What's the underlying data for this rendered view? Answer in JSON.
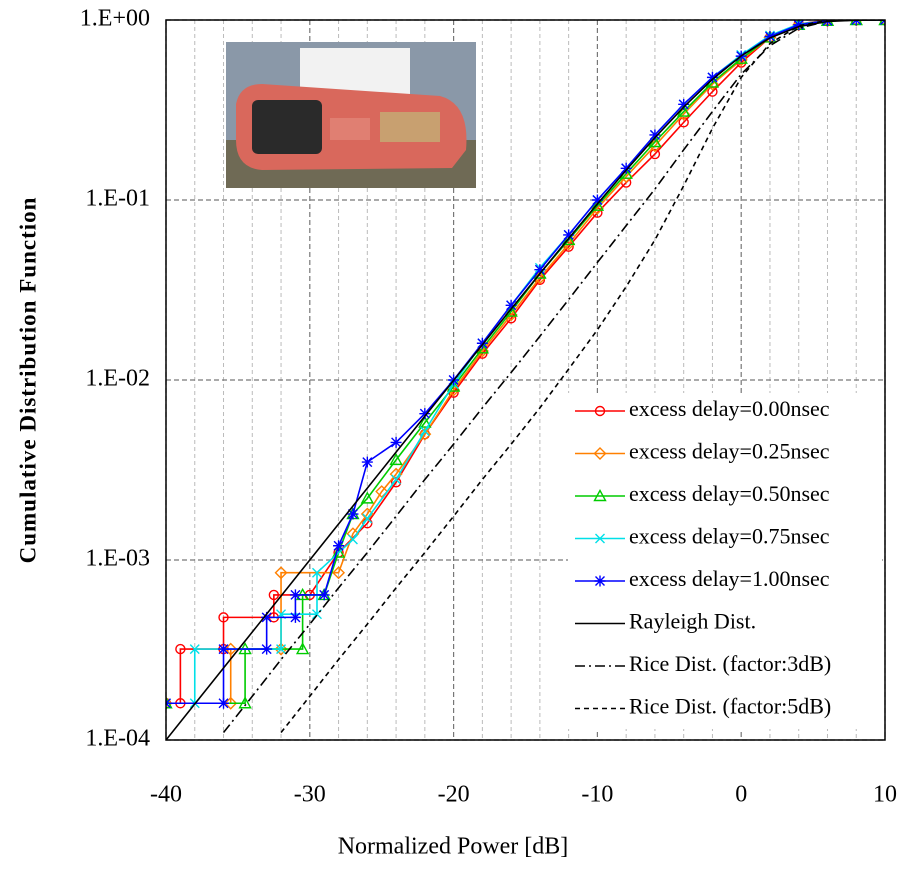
{
  "chart_data": {
    "type": "line",
    "xlabel": "Normalized Power [dB]",
    "ylabel": "Cumulative Distribution Function",
    "xlim": [
      -40,
      10
    ],
    "xticks": [
      -40,
      -30,
      -20,
      -10,
      0,
      10
    ],
    "minor_xticks": [
      -38,
      -36,
      -34,
      -32,
      -28,
      -26,
      -24,
      -22,
      -18,
      -16,
      -14,
      -12,
      -8,
      -6,
      -4,
      -2,
      2,
      4,
      6,
      8
    ],
    "ylim": [
      0.0001,
      1
    ],
    "yscale": "log",
    "yticks": [
      {
        "value": 0.0001,
        "label": "1.E-04"
      },
      {
        "value": 0.001,
        "label": "1.E-03"
      },
      {
        "value": 0.01,
        "label": "1.E-02"
      },
      {
        "value": 0.1,
        "label": "1.E-01"
      },
      {
        "value": 1,
        "label": "1.E+00"
      }
    ],
    "grid": true,
    "legend": "lower right",
    "series": [
      {
        "name": "excess delay=0.00nsec",
        "color": "#ff0000",
        "marker": "circle",
        "dash": "solid",
        "x": [
          -40,
          -39,
          -39,
          -36,
          -36,
          -32.5,
          -32.5,
          -30,
          -28,
          -26,
          -24,
          -22,
          -20,
          -18,
          -16,
          -14,
          -12,
          -10,
          -8,
          -6,
          -4,
          -2,
          0,
          2,
          4,
          6,
          8,
          10
        ],
        "values": [
          0.00016,
          0.00016,
          0.00032,
          0.00032,
          0.00048,
          0.00048,
          0.00064,
          0.00064,
          0.0011,
          0.0016,
          0.0027,
          0.005,
          0.0085,
          0.014,
          0.022,
          0.036,
          0.055,
          0.085,
          0.125,
          0.18,
          0.27,
          0.4,
          0.58,
          0.8,
          0.95,
          1,
          1,
          1
        ]
      },
      {
        "name": "excess delay=0.25nsec",
        "color": "#ff8000",
        "marker": "diamond",
        "dash": "solid",
        "x": [
          -40,
          -35.5,
          -35.5,
          -32,
          -32,
          -28,
          -27,
          -26,
          -25,
          -24,
          -22,
          -20,
          -18,
          -16,
          -14,
          -12,
          -10,
          -8,
          -6,
          -4,
          -2,
          0,
          2,
          4,
          6,
          8,
          10
        ],
        "values": [
          0.00016,
          0.00016,
          0.00032,
          0.00032,
          0.00085,
          0.00085,
          0.0014,
          0.0018,
          0.0024,
          0.003,
          0.005,
          0.0088,
          0.0145,
          0.023,
          0.037,
          0.057,
          0.09,
          0.135,
          0.2,
          0.3,
          0.44,
          0.6,
          0.8,
          0.94,
          0.99,
          1,
          1
        ]
      },
      {
        "name": "excess delay=0.50nsec",
        "color": "#00cc00",
        "marker": "triangle",
        "dash": "solid",
        "x": [
          -40,
          -34.5,
          -34.5,
          -30.5,
          -30.5,
          -29,
          -28,
          -27,
          -26,
          -24,
          -22,
          -20,
          -18,
          -16,
          -14,
          -12,
          -10,
          -8,
          -6,
          -4,
          -2,
          0,
          2,
          4,
          6,
          8,
          10
        ],
        "values": [
          0.00016,
          0.00016,
          0.00032,
          0.00032,
          0.00064,
          0.00064,
          0.0011,
          0.0018,
          0.0022,
          0.0036,
          0.0058,
          0.0092,
          0.015,
          0.024,
          0.039,
          0.06,
          0.093,
          0.14,
          0.21,
          0.31,
          0.45,
          0.61,
          0.8,
          0.94,
          0.99,
          1,
          1
        ]
      },
      {
        "name": "excess delay=0.75nsec",
        "color": "#00e0e8",
        "marker": "x",
        "dash": "solid",
        "x": [
          -40,
          -38,
          -38,
          -32,
          -32,
          -29.5,
          -29.5,
          -27,
          -26,
          -24,
          -22,
          -20,
          -18,
          -16,
          -14,
          -12,
          -10,
          -8,
          -6,
          -4,
          -2,
          0,
          2,
          4,
          6,
          8,
          10
        ],
        "values": [
          0.00016,
          0.00016,
          0.00032,
          0.00032,
          0.0005,
          0.0005,
          0.00085,
          0.0013,
          0.0017,
          0.0028,
          0.0052,
          0.0095,
          0.016,
          0.026,
          0.042,
          0.064,
          0.1,
          0.15,
          0.23,
          0.34,
          0.48,
          0.64,
          0.82,
          0.95,
          0.99,
          1,
          1
        ]
      },
      {
        "name": "excess delay=1.00nsec",
        "color": "#0000ff",
        "marker": "star",
        "dash": "solid",
        "x": [
          -40,
          -36,
          -36,
          -33,
          -33,
          -31,
          -31,
          -29,
          -28,
          -27,
          -26,
          -24,
          -22,
          -20,
          -18,
          -16,
          -14,
          -12,
          -10,
          -8,
          -6,
          -4,
          -2,
          0,
          2,
          4,
          6,
          8,
          10
        ],
        "values": [
          0.00016,
          0.00016,
          0.00032,
          0.00032,
          0.00048,
          0.00048,
          0.00064,
          0.00064,
          0.0012,
          0.0018,
          0.0035,
          0.0045,
          0.0065,
          0.01,
          0.016,
          0.026,
          0.041,
          0.064,
          0.1,
          0.15,
          0.23,
          0.34,
          0.48,
          0.63,
          0.81,
          0.94,
          0.99,
          1,
          1
        ]
      },
      {
        "name": "Rayleigh Dist.",
        "color": "#000000",
        "marker": "none",
        "dash": "solid",
        "x": [
          -40,
          -38,
          -36,
          -34,
          -32,
          -30,
          -28,
          -26,
          -24,
          -22,
          -20,
          -18,
          -16,
          -14,
          -12,
          -10,
          -8,
          -6,
          -4,
          -2,
          0,
          2,
          4,
          6,
          8,
          10
        ],
        "values": [
          0.0001,
          0.0001585,
          0.0002512,
          0.0003981,
          0.0006308,
          0.0009995,
          0.001584,
          0.002509,
          0.003973,
          0.00629,
          0.00995,
          0.0157,
          0.0248,
          0.039,
          0.0611,
          0.0952,
          0.1466,
          0.2221,
          0.3284,
          0.468,
          0.632,
          0.795,
          0.919,
          0.981,
          0.998,
          1
        ]
      },
      {
        "name": "Rice Dist. (factor:3dB)",
        "color": "#000000",
        "marker": "none",
        "dash": "dashdot",
        "x": [
          -36,
          -34,
          -32,
          -30,
          -28,
          -26,
          -24,
          -22,
          -20,
          -18,
          -16,
          -14,
          -12,
          -10,
          -8,
          -6,
          -4,
          -2,
          0,
          2,
          4,
          6,
          8,
          10
        ],
        "values": [
          0.00011,
          0.000175,
          0.00028,
          0.00044,
          0.0007,
          0.0011,
          0.00175,
          0.0028,
          0.0044,
          0.007,
          0.011,
          0.0175,
          0.028,
          0.045,
          0.072,
          0.115,
          0.19,
          0.31,
          0.5,
          0.72,
          0.9,
          0.985,
          1,
          1
        ]
      },
      {
        "name": "Rice Dist. (factor:5dB)",
        "color": "#000000",
        "marker": "none",
        "dash": "dashed",
        "x": [
          -32,
          -30,
          -28,
          -26,
          -24,
          -22,
          -20,
          -18,
          -16,
          -14,
          -12,
          -10,
          -8,
          -6,
          -4,
          -2,
          0,
          2,
          4,
          6,
          8,
          10
        ],
        "values": [
          0.00011,
          0.000175,
          0.00028,
          0.00044,
          0.0007,
          0.0011,
          0.00175,
          0.0028,
          0.0044,
          0.007,
          0.0115,
          0.019,
          0.033,
          0.06,
          0.12,
          0.25,
          0.48,
          0.74,
          0.93,
          0.995,
          1,
          1
        ]
      }
    ]
  }
}
